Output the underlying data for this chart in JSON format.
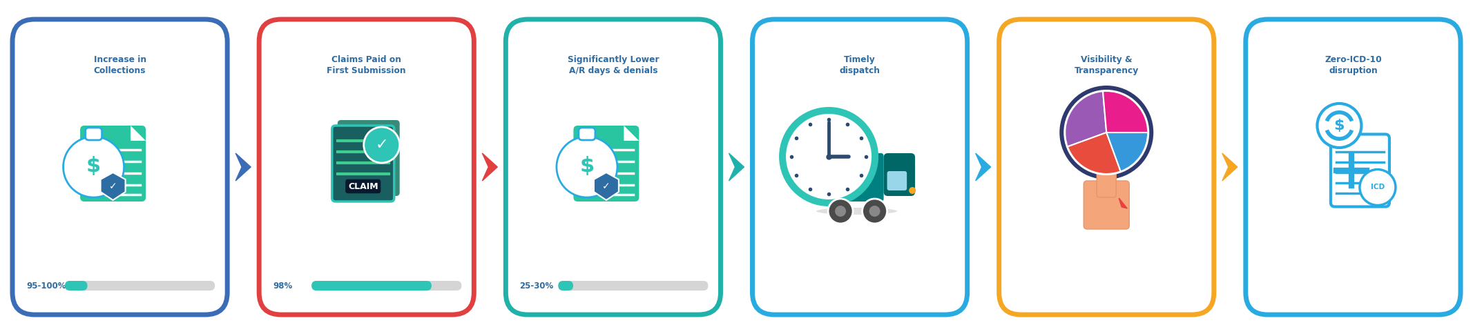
{
  "bg_color": "#ffffff",
  "fig_w": 21.33,
  "fig_h": 4.84,
  "dpi": 100,
  "boxes": [
    {
      "title": "Increase in\nCollections",
      "subtitle": "95-100%",
      "border_color": "#3a6db5",
      "progress_color": "#2ec4b6",
      "progress_pct": 0.15,
      "arrow_color": "#3a6db5",
      "icon": "money_bag_doc"
    },
    {
      "title": "Claims Paid on\nFirst Submission",
      "subtitle": "98%",
      "border_color": "#e04040",
      "progress_color": "#2ec4b6",
      "progress_pct": 0.8,
      "arrow_color": "#e04040",
      "icon": "claim_doc"
    },
    {
      "title": "Significantly Lower\nA/R days & denials",
      "subtitle": "25-30%",
      "border_color": "#20b2aa",
      "progress_color": "#2ec4b6",
      "progress_pct": 0.1,
      "arrow_color": "#20b2aa",
      "icon": "money_bag_doc2"
    },
    {
      "title": "Timely\ndispatch",
      "subtitle": "",
      "border_color": "#29abe2",
      "progress_color": "#29abe2",
      "progress_pct": 0,
      "arrow_color": "#29abe2",
      "icon": "clock_truck"
    },
    {
      "title": "Visibility &\nTransparency",
      "subtitle": "",
      "border_color": "#f5a623",
      "progress_color": "#f5a623",
      "progress_pct": 0,
      "arrow_color": "#f5a623",
      "icon": "pie_hand"
    },
    {
      "title": "Zero-ICD-10\ndisruption",
      "subtitle": "",
      "border_color": "#29abe2",
      "progress_color": "#29abe2",
      "progress_pct": 0,
      "arrow_color": "#29abe2",
      "icon": "icd_doc"
    }
  ],
  "title_color": "#2e6da4",
  "subtitle_color": "#2e6da4",
  "progress_bg_color": "#d5d5d5"
}
